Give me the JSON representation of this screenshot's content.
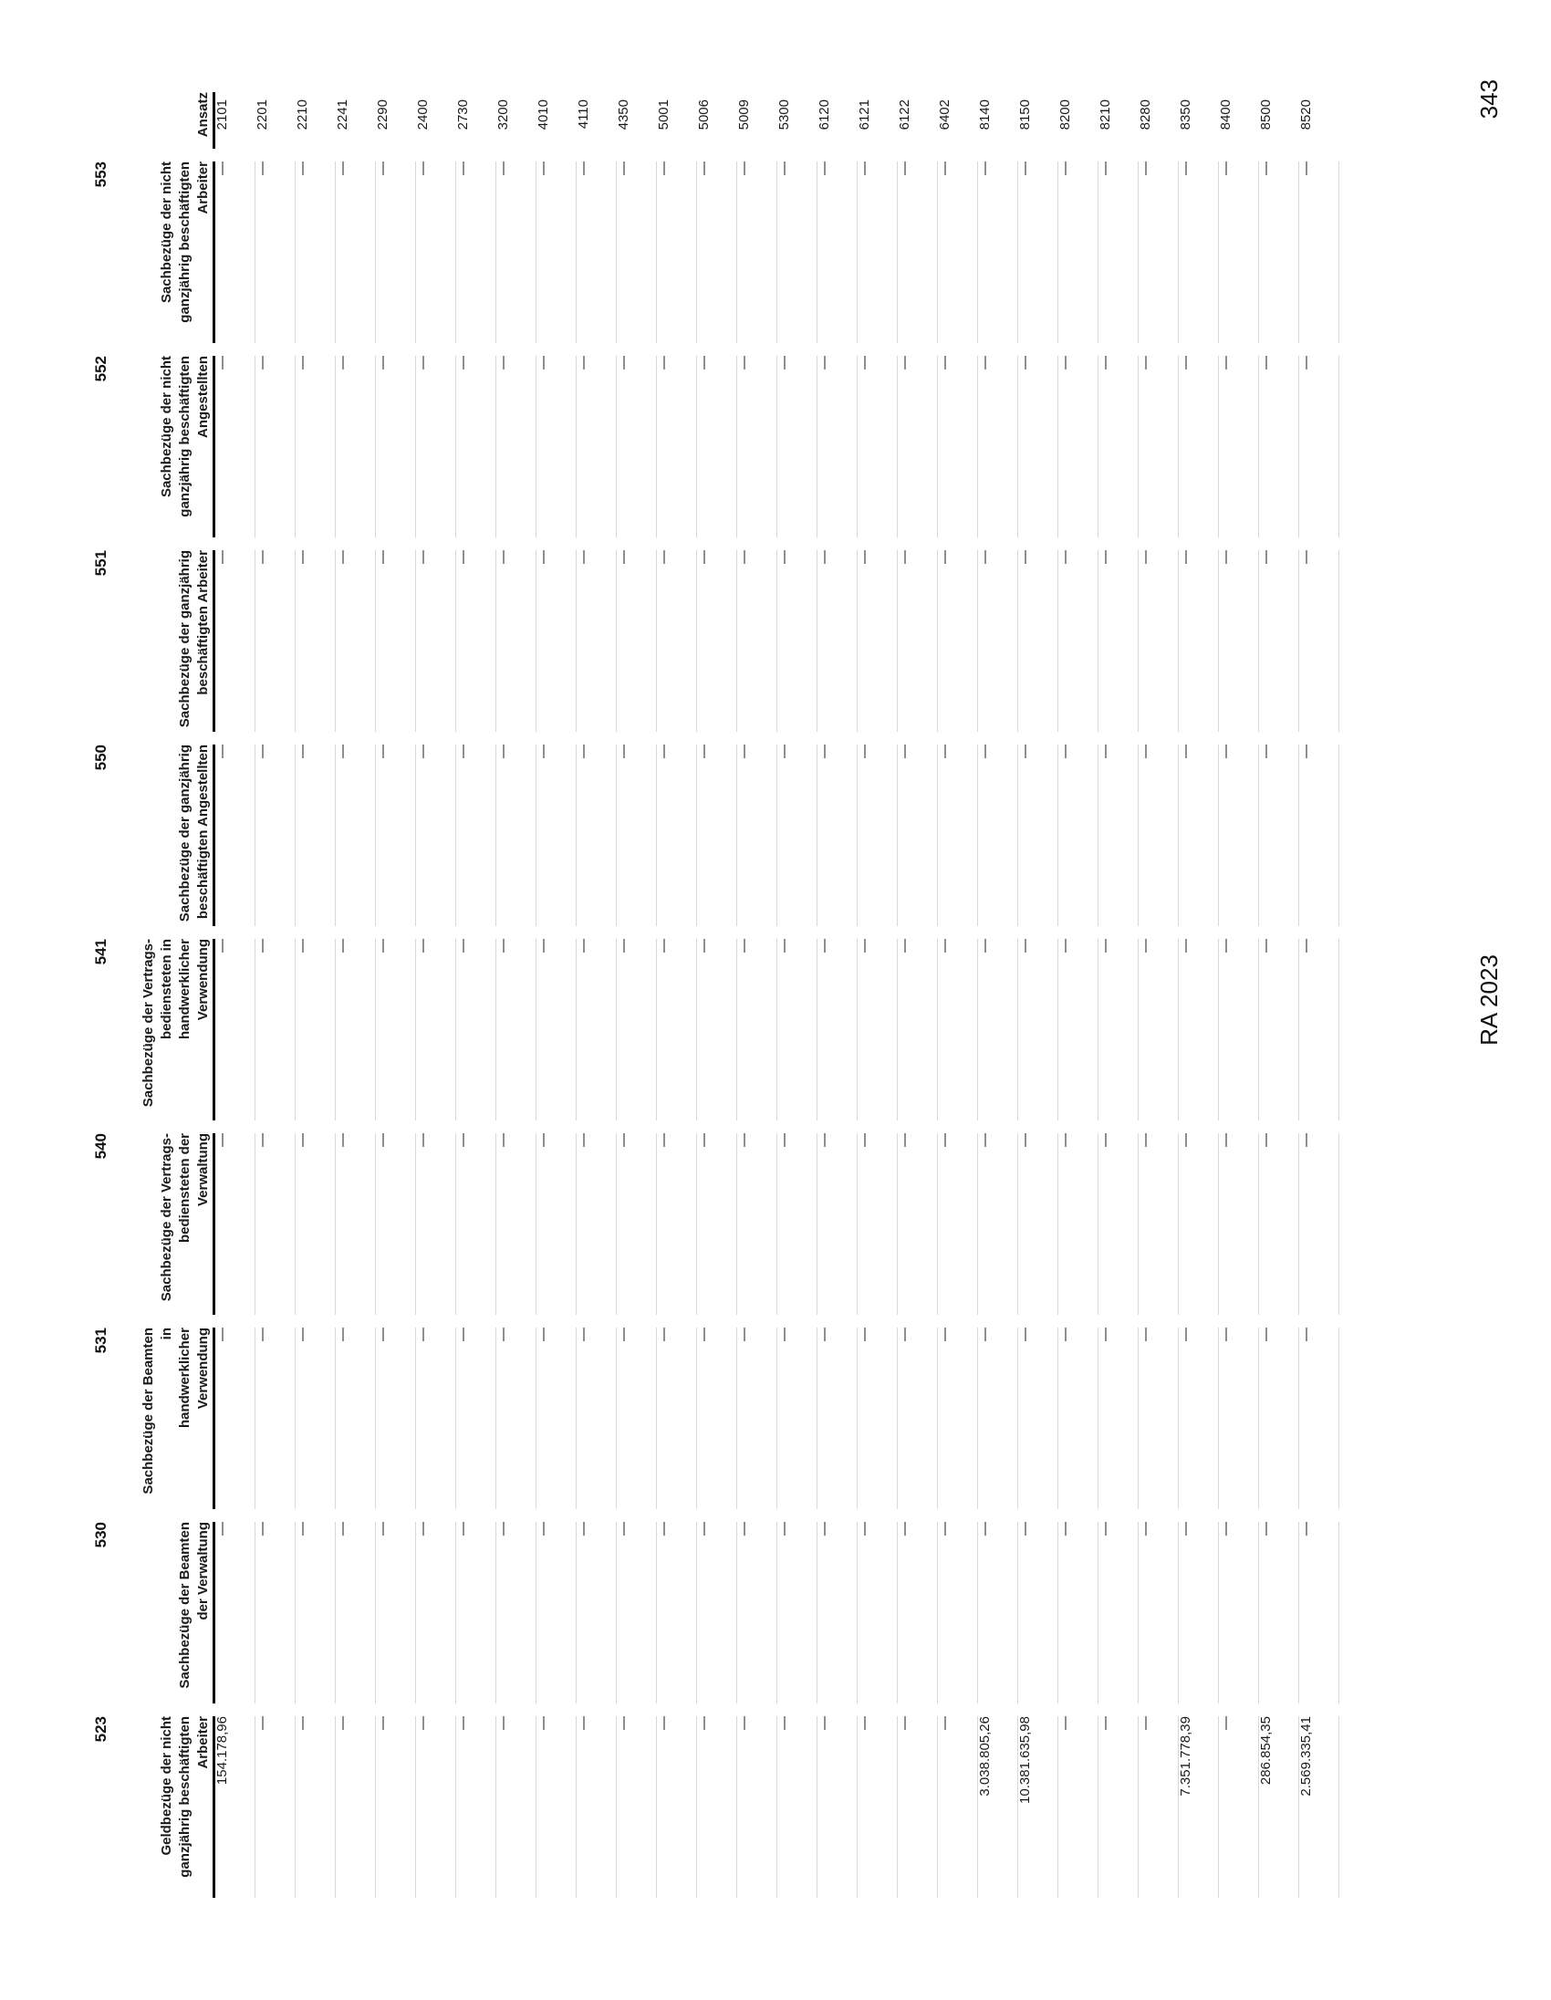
{
  "document": {
    "footer": {
      "report_label": "RA 2023",
      "page_number": "343"
    },
    "table": {
      "ansatz_header": "Ansatz",
      "empty_cell_symbol": "—",
      "columns": [
        {
          "code": "523",
          "label_lines": [
            "Geldbezüge der nicht",
            "ganzjährig beschäftigten",
            "Arbeiter"
          ]
        },
        {
          "code": "530",
          "label_lines": [
            "Sachbezüge der Beamten",
            "der Verwaltung"
          ]
        },
        {
          "code": "531",
          "label_lines": [
            "Sachbezüge der Beamten in",
            "handwerklicher Verwendung"
          ]
        },
        {
          "code": "540",
          "label_lines": [
            "Sachbezüge der Vertrags-",
            "bediensteten der Verwaltung"
          ]
        },
        {
          "code": "541",
          "label_lines": [
            "Sachbezüge der Vertrags-",
            "bediensteten in",
            "handwerklicher Verwendung"
          ]
        },
        {
          "code": "550",
          "label_lines": [
            "Sachbezüge der ganzjährig",
            "beschäftigten Angestellten"
          ]
        },
        {
          "code": "551",
          "label_lines": [
            "Sachbezüge der ganzjährig",
            "beschäftigten Arbeiter"
          ]
        },
        {
          "code": "552",
          "label_lines": [
            "Sachbezüge der nicht",
            "ganzjährig beschäftigten",
            "Angestellten"
          ]
        },
        {
          "code": "553",
          "label_lines": [
            "Sachbezüge der nicht",
            "ganzjährig beschäftigten",
            "Arbeiter"
          ]
        }
      ],
      "rows": [
        {
          "ansatz": "2101",
          "values": {
            "523": "154.178,96"
          }
        },
        {
          "ansatz": "2201",
          "values": {}
        },
        {
          "ansatz": "2210",
          "values": {}
        },
        {
          "ansatz": "2241",
          "values": {}
        },
        {
          "ansatz": "2290",
          "values": {}
        },
        {
          "ansatz": "2400",
          "values": {}
        },
        {
          "ansatz": "2730",
          "values": {}
        },
        {
          "ansatz": "3200",
          "values": {}
        },
        {
          "ansatz": "4010",
          "values": {}
        },
        {
          "ansatz": "4110",
          "values": {}
        },
        {
          "ansatz": "4350",
          "values": {}
        },
        {
          "ansatz": "5001",
          "values": {}
        },
        {
          "ansatz": "5006",
          "values": {}
        },
        {
          "ansatz": "5009",
          "values": {}
        },
        {
          "ansatz": "5300",
          "values": {}
        },
        {
          "ansatz": "6120",
          "values": {}
        },
        {
          "ansatz": "6121",
          "values": {}
        },
        {
          "ansatz": "6122",
          "values": {}
        },
        {
          "ansatz": "6402",
          "values": {}
        },
        {
          "ansatz": "8140",
          "values": {
            "523": "3.038.805,26"
          }
        },
        {
          "ansatz": "8150",
          "values": {
            "523": "10.381.635,98"
          }
        },
        {
          "ansatz": "8200",
          "values": {}
        },
        {
          "ansatz": "8210",
          "values": {}
        },
        {
          "ansatz": "8280",
          "values": {}
        },
        {
          "ansatz": "8350",
          "values": {
            "523": "7.351.778,39"
          }
        },
        {
          "ansatz": "8400",
          "values": {}
        },
        {
          "ansatz": "8500",
          "values": {
            "523": "286.854,35"
          }
        },
        {
          "ansatz": "8520",
          "values": {
            "523": "2.569.335,41"
          }
        }
      ]
    }
  }
}
